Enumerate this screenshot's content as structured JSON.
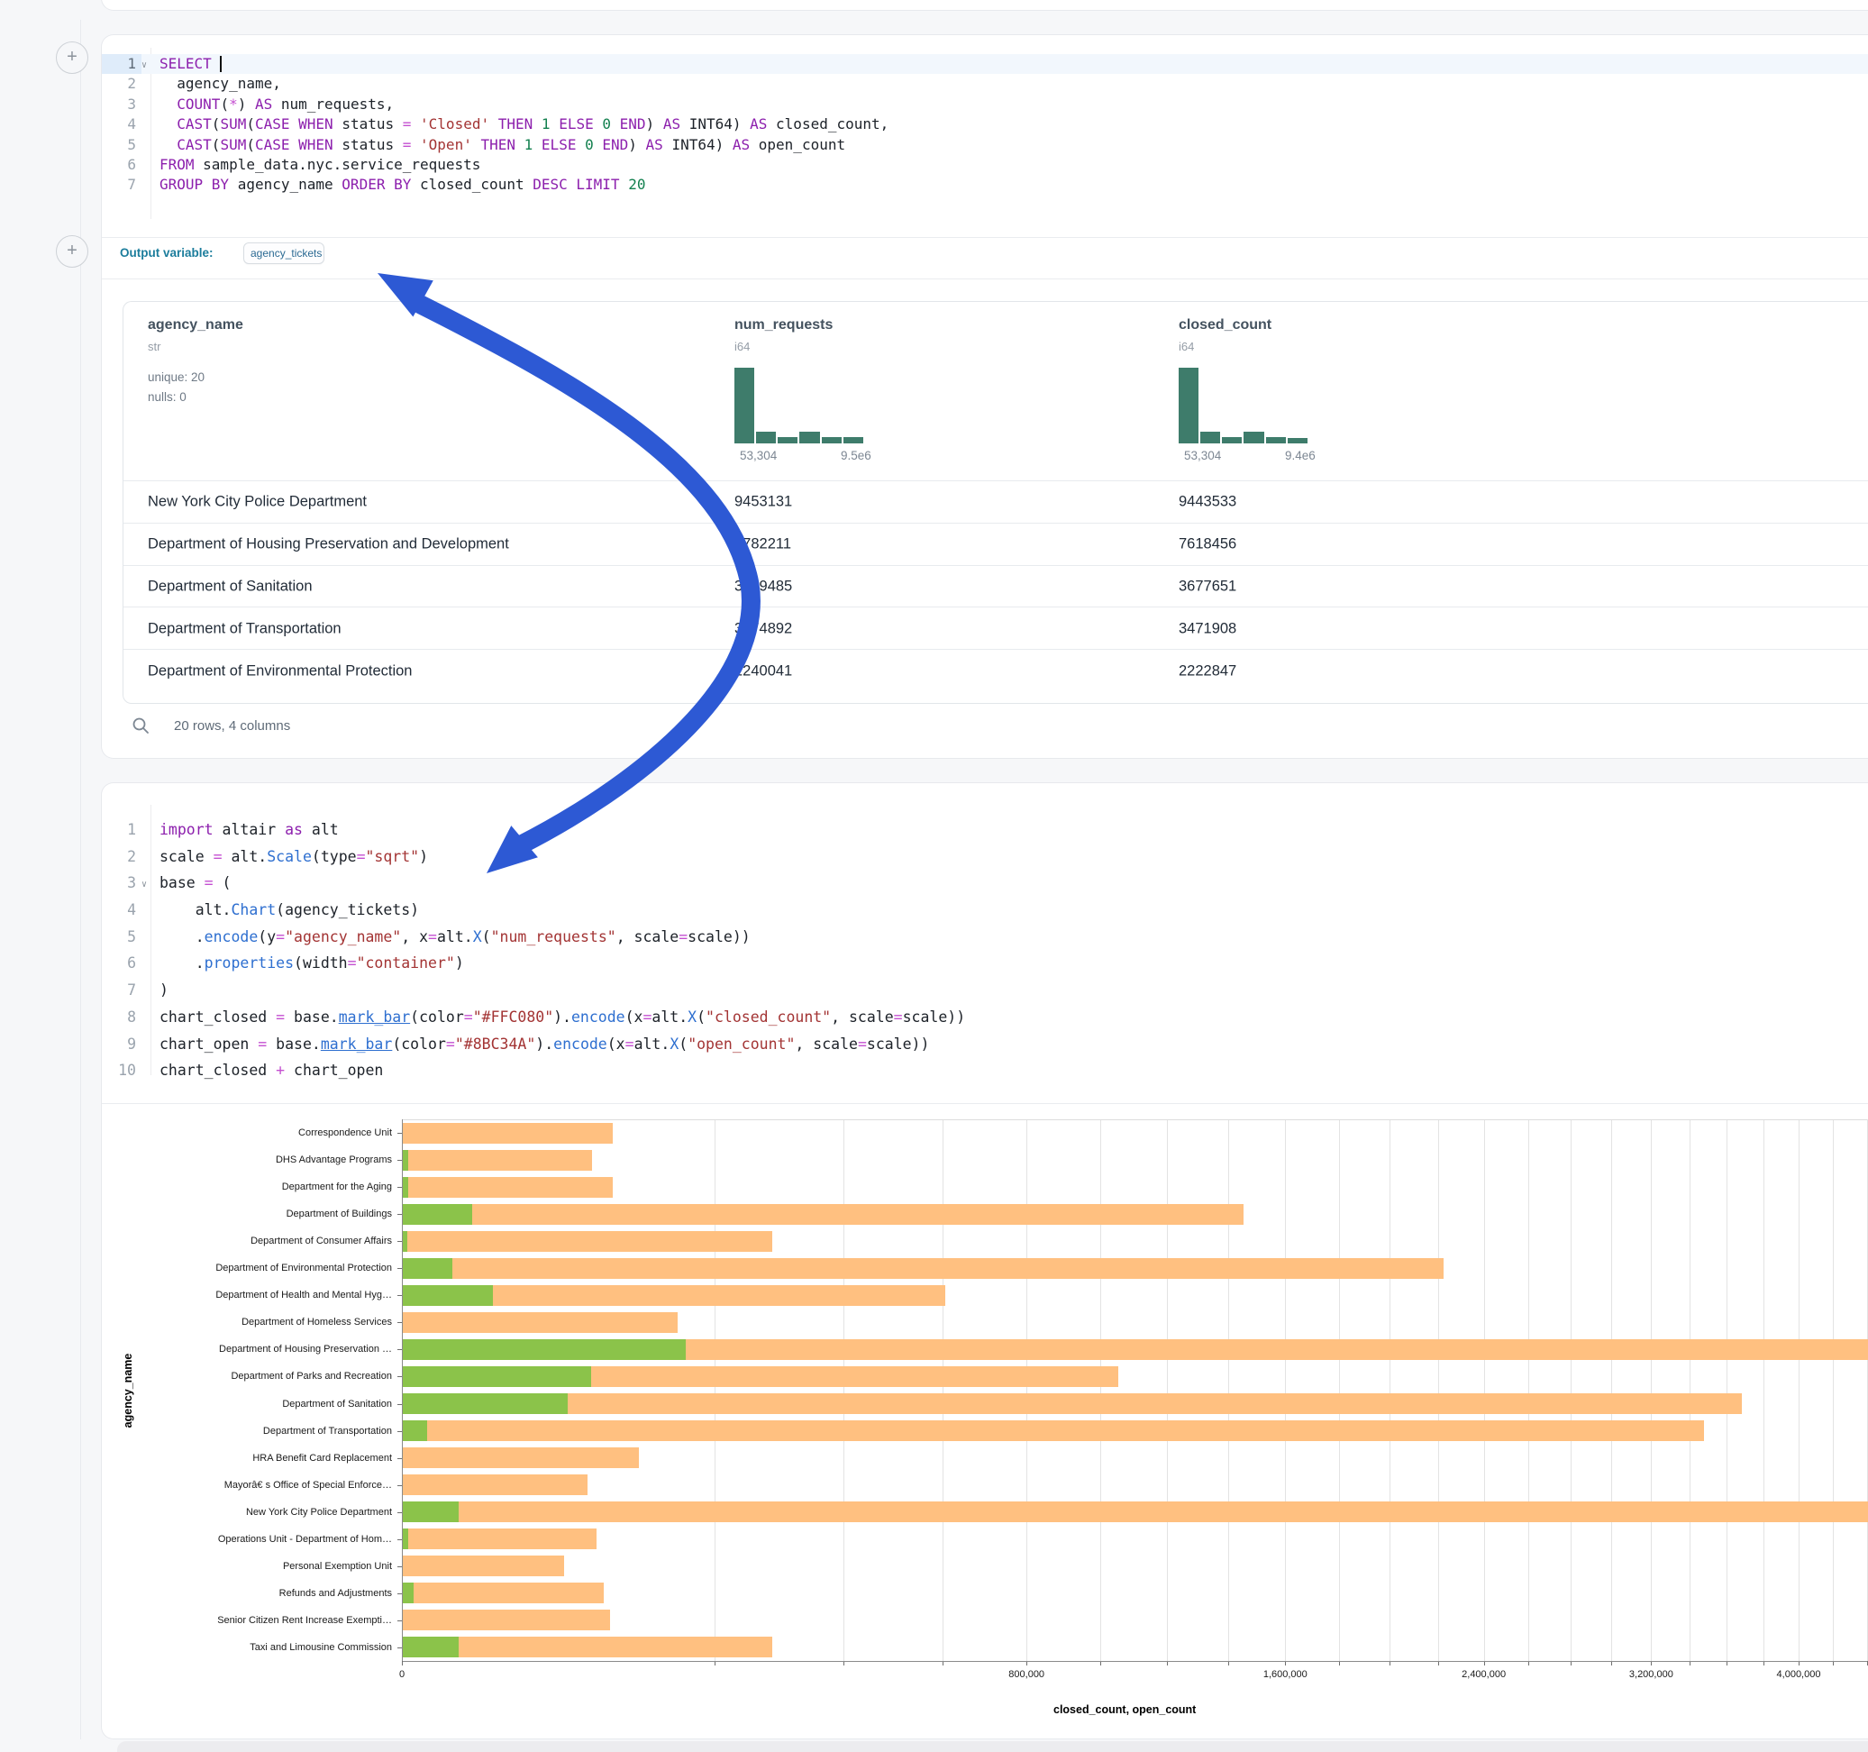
{
  "sql_cell": {
    "line_count": 7,
    "active_line": 1,
    "fold_lines": [
      1
    ],
    "lines": [
      [
        [
          "k",
          "SELECT"
        ],
        [
          "p",
          " "
        ],
        [
          "cur",
          ""
        ]
      ],
      [
        [
          "p",
          "  agency_name,"
        ]
      ],
      [
        [
          "p",
          "  "
        ],
        [
          "k",
          "COUNT"
        ],
        [
          "p",
          "("
        ],
        [
          "o",
          "*"
        ],
        [
          "p",
          ") "
        ],
        [
          "k",
          "AS"
        ],
        [
          "p",
          " num_requests,"
        ]
      ],
      [
        [
          "p",
          "  "
        ],
        [
          "k",
          "CAST"
        ],
        [
          "p",
          "("
        ],
        [
          "k",
          "SUM"
        ],
        [
          "p",
          "("
        ],
        [
          "k",
          "CASE"
        ],
        [
          "p",
          " "
        ],
        [
          "k",
          "WHEN"
        ],
        [
          "p",
          " status "
        ],
        [
          "o",
          "="
        ],
        [
          "p",
          " "
        ],
        [
          "s",
          "'Closed'"
        ],
        [
          "p",
          " "
        ],
        [
          "k",
          "THEN"
        ],
        [
          "p",
          " "
        ],
        [
          "n",
          "1"
        ],
        [
          "p",
          " "
        ],
        [
          "k",
          "ELSE"
        ],
        [
          "p",
          " "
        ],
        [
          "n",
          "0"
        ],
        [
          "p",
          " "
        ],
        [
          "k",
          "END"
        ],
        [
          "p",
          ") "
        ],
        [
          "k",
          "AS"
        ],
        [
          "p",
          " INT64) "
        ],
        [
          "k",
          "AS"
        ],
        [
          "p",
          " closed_count,"
        ]
      ],
      [
        [
          "p",
          "  "
        ],
        [
          "k",
          "CAST"
        ],
        [
          "p",
          "("
        ],
        [
          "k",
          "SUM"
        ],
        [
          "p",
          "("
        ],
        [
          "k",
          "CASE"
        ],
        [
          "p",
          " "
        ],
        [
          "k",
          "WHEN"
        ],
        [
          "p",
          " status "
        ],
        [
          "o",
          "="
        ],
        [
          "p",
          " "
        ],
        [
          "s",
          "'Open'"
        ],
        [
          "p",
          " "
        ],
        [
          "k",
          "THEN"
        ],
        [
          "p",
          " "
        ],
        [
          "n",
          "1"
        ],
        [
          "p",
          " "
        ],
        [
          "k",
          "ELSE"
        ],
        [
          "p",
          " "
        ],
        [
          "n",
          "0"
        ],
        [
          "p",
          " "
        ],
        [
          "k",
          "END"
        ],
        [
          "p",
          ") "
        ],
        [
          "k",
          "AS"
        ],
        [
          "p",
          " INT64) "
        ],
        [
          "k",
          "AS"
        ],
        [
          "p",
          " open_count"
        ]
      ],
      [
        [
          "k",
          "FROM"
        ],
        [
          "p",
          " sample_data.nyc.service_requests"
        ]
      ],
      [
        [
          "k",
          "GROUP BY"
        ],
        [
          "p",
          " agency_name "
        ],
        [
          "k",
          "ORDER BY"
        ],
        [
          "p",
          " closed_count "
        ],
        [
          "k",
          "DESC"
        ],
        [
          "p",
          " "
        ],
        [
          "k",
          "LIMIT"
        ],
        [
          "p",
          " "
        ],
        [
          "n",
          "20"
        ]
      ]
    ],
    "output_variable_label": "Output variable:",
    "output_variable_value": "agency_tickets"
  },
  "table": {
    "hist_color": "#3e7c6b",
    "columns": [
      {
        "name": "agency_name",
        "type": "str",
        "stats": [
          "unique: 20",
          "nulls: 0"
        ]
      },
      {
        "name": "num_requests",
        "type": "i64",
        "hist": [
          1,
          0.16,
          0.08,
          0.15,
          0.08,
          0.08
        ],
        "min": "53,304",
        "max": "9.5e6"
      },
      {
        "name": "closed_count",
        "type": "i64",
        "hist": [
          1,
          0.16,
          0.08,
          0.15,
          0.08,
          0.07
        ],
        "min": "53,304",
        "max": "9.4e6"
      }
    ],
    "rows": [
      [
        "New York City Police Department",
        "9453131",
        "9443533"
      ],
      [
        "Department of Housing Preservation and Development",
        "7782211",
        "7618456"
      ],
      [
        "Department of Sanitation",
        "3749485",
        "3677651"
      ],
      [
        "Department of Transportation",
        "3774892",
        "3471908"
      ],
      [
        "Department of Environmental Protection",
        "2240041",
        "2222847"
      ]
    ],
    "footer": "20 rows, 4 columns"
  },
  "python_cell": {
    "line_count": 10,
    "fold_lines": [
      3
    ],
    "lines": [
      [
        [
          "k",
          "import"
        ],
        [
          "p",
          " altair "
        ],
        [
          "k",
          "as"
        ],
        [
          "p",
          " alt"
        ]
      ],
      [
        [
          "p",
          "scale "
        ],
        [
          "o",
          "="
        ],
        [
          "p",
          " alt."
        ],
        [
          "f",
          "Scale"
        ],
        [
          "p",
          "(type"
        ],
        [
          "o",
          "="
        ],
        [
          "s",
          "\"sqrt\""
        ],
        [
          "p",
          ")"
        ]
      ],
      [
        [
          "p",
          "base "
        ],
        [
          "o",
          "="
        ],
        [
          "p",
          " ("
        ]
      ],
      [
        [
          "p",
          "    alt."
        ],
        [
          "f",
          "Chart"
        ],
        [
          "p",
          "(agency_tickets)"
        ]
      ],
      [
        [
          "p",
          "    ."
        ],
        [
          "f",
          "encode"
        ],
        [
          "p",
          "(y"
        ],
        [
          "o",
          "="
        ],
        [
          "s",
          "\"agency_name\""
        ],
        [
          "p",
          ", x"
        ],
        [
          "o",
          "="
        ],
        [
          "p",
          "alt."
        ],
        [
          "f",
          "X"
        ],
        [
          "p",
          "("
        ],
        [
          "s",
          "\"num_requests\""
        ],
        [
          "p",
          ", scale"
        ],
        [
          "o",
          "="
        ],
        [
          "p",
          "scale))"
        ]
      ],
      [
        [
          "p",
          "    ."
        ],
        [
          "f",
          "properties"
        ],
        [
          "p",
          "(width"
        ],
        [
          "o",
          "="
        ],
        [
          "s",
          "\"container\""
        ],
        [
          "p",
          ")"
        ]
      ],
      [
        [
          "p",
          ")"
        ]
      ],
      [
        [
          "p",
          "chart_closed "
        ],
        [
          "o",
          "="
        ],
        [
          "p",
          " base."
        ],
        [
          "u",
          "mark_bar"
        ],
        [
          "p",
          "(color"
        ],
        [
          "o",
          "="
        ],
        [
          "s",
          "\"#FFC080\""
        ],
        [
          "p",
          ")."
        ],
        [
          "f",
          "encode"
        ],
        [
          "p",
          "(x"
        ],
        [
          "o",
          "="
        ],
        [
          "p",
          "alt."
        ],
        [
          "f",
          "X"
        ],
        [
          "p",
          "("
        ],
        [
          "s",
          "\"closed_count\""
        ],
        [
          "p",
          ", scale"
        ],
        [
          "o",
          "="
        ],
        [
          "p",
          "scale))"
        ]
      ],
      [
        [
          "p",
          "chart_open "
        ],
        [
          "o",
          "="
        ],
        [
          "p",
          " base."
        ],
        [
          "u",
          "mark_bar"
        ],
        [
          "p",
          "(color"
        ],
        [
          "o",
          "="
        ],
        [
          "s",
          "\"#8BC34A\""
        ],
        [
          "p",
          ")."
        ],
        [
          "f",
          "encode"
        ],
        [
          "p",
          "(x"
        ],
        [
          "o",
          "="
        ],
        [
          "p",
          "alt."
        ],
        [
          "f",
          "X"
        ],
        [
          "p",
          "("
        ],
        [
          "s",
          "\"open_count\""
        ],
        [
          "p",
          ", scale"
        ],
        [
          "o",
          "="
        ],
        [
          "p",
          "scale))"
        ]
      ],
      [
        [
          "p",
          "chart_closed "
        ],
        [
          "o",
          "+"
        ],
        [
          "p",
          " chart_open"
        ]
      ]
    ]
  },
  "chart_data": {
    "type": "bar",
    "orientation": "horizontal",
    "x_scale": "sqrt",
    "title": "",
    "xlabel": "closed_count, open_count",
    "ylabel": "agency_name",
    "categories": [
      "Correspondence Unit",
      "DHS Advantage Programs",
      "Department for the Aging",
      "Department of Buildings",
      "Department of Consumer Affairs",
      "Department of Environmental Protection",
      "Department of Health and Mental Hyg…",
      "Department of Homeless Services",
      "Department of Housing Preservation …",
      "Department of Parks and Recreation",
      "Department of Sanitation",
      "Department of Transportation",
      "HRA Benefit Card Replacement",
      "Mayorâ€ s Office of Special Enforce…",
      "New York City Police Department",
      "Operations Unit - Department of Hom…",
      "Personal Exemption Unit",
      "Refunds and Adjustments",
      "Senior Citizen Rent Increase Exempti…",
      "Taxi and Limousine Commission"
    ],
    "series": [
      {
        "name": "closed_count",
        "color": "#FFC080",
        "values": [
          90400,
          73400,
          90000,
          1450000,
          280000,
          2222847,
          603000,
          155000,
          7618456,
          1050000,
          3677651,
          3471908,
          114000,
          70000,
          9443533,
          76800,
          53304,
          82800,
          88200,
          280000
        ]
      },
      {
        "name": "open_count",
        "color": "#8BC34A",
        "values": [
          0,
          60,
          60,
          9900,
          40,
          5000,
          16600,
          0,
          164000,
          73000,
          56000,
          1200,
          0,
          0,
          6400,
          60,
          0,
          230,
          0,
          6400
        ]
      }
    ],
    "x_ticks_labeled": [
      0,
      800000,
      1600000,
      2400000,
      3200000,
      4000000
    ],
    "x_tick_step_minor": 200000,
    "grid": true,
    "legend": "none"
  },
  "annotations": {
    "arrow_color": "#2d59d4"
  }
}
